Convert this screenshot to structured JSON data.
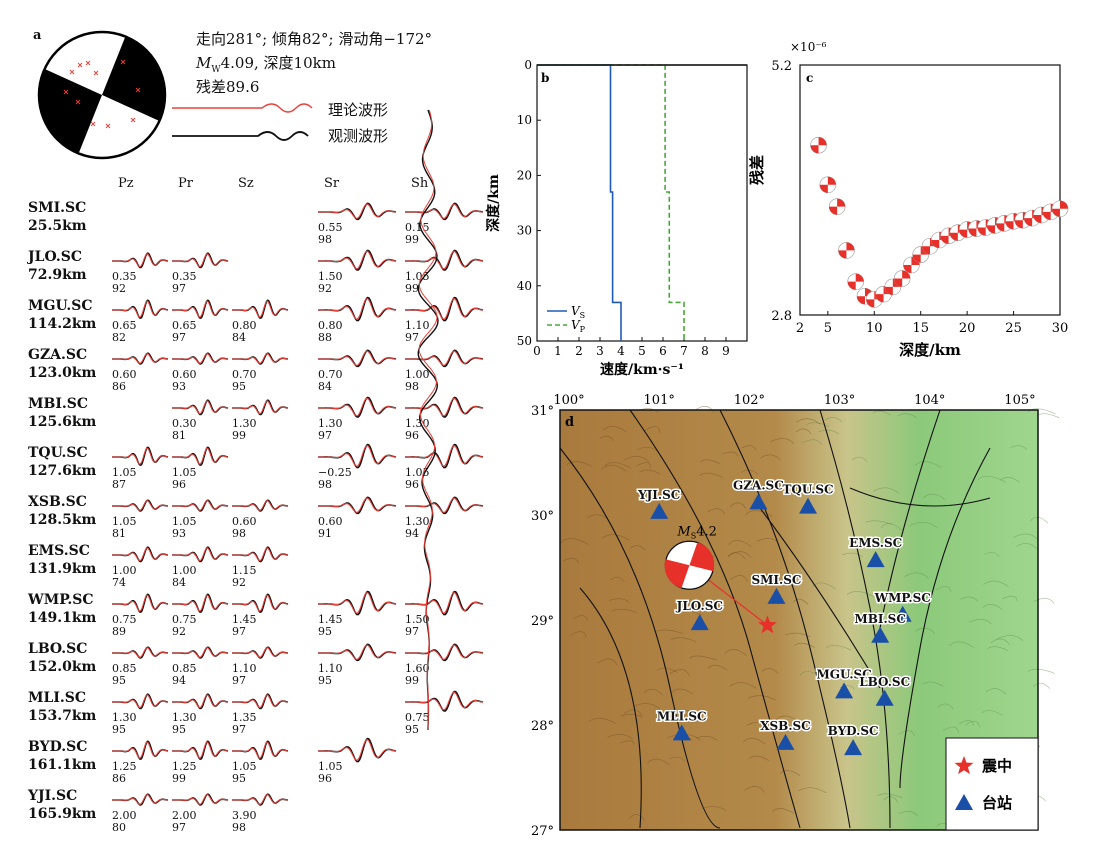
{
  "panel_a": {
    "label": "a",
    "mech_text_line1": "走向281°; 倾角82°; 滑动角−172°",
    "mech_text_mw": "M",
    "mech_text_mw_sub": "W",
    "mech_text_line2_rest": "4.09, 深度10km",
    "mech_text_line3": "残差89.6",
    "legend_theory": "理论波形",
    "legend_observed": "观测波形",
    "components": [
      "Pz",
      "Pr",
      "Sz",
      "Sr",
      "Sh"
    ],
    "stations": [
      {
        "name": "SMI.SC",
        "dist": "25.5km",
        "vals": [
          null,
          null,
          null,
          [
            "0.55",
            "98"
          ],
          [
            "0.15",
            "99"
          ]
        ]
      },
      {
        "name": "JLO.SC",
        "dist": "72.9km",
        "vals": [
          [
            "0.35",
            "92"
          ],
          [
            "0.35",
            "97"
          ],
          null,
          [
            "1.50",
            "92"
          ],
          [
            "1.05",
            "99"
          ]
        ]
      },
      {
        "name": "MGU.SC",
        "dist": "114.2km",
        "vals": [
          [
            "0.65",
            "82"
          ],
          [
            "0.65",
            "97"
          ],
          [
            "0.80",
            "84"
          ],
          [
            "0.80",
            "88"
          ],
          [
            "1.10",
            "97"
          ]
        ]
      },
      {
        "name": "GZA.SC",
        "dist": "123.0km",
        "vals": [
          [
            "0.60",
            "86"
          ],
          [
            "0.60",
            "93"
          ],
          [
            "0.70",
            "95"
          ],
          [
            "0.70",
            "84"
          ],
          [
            "1.00",
            "98"
          ]
        ]
      },
      {
        "name": "MBI.SC",
        "dist": "125.6km",
        "vals": [
          null,
          [
            "0.30",
            "81"
          ],
          [
            "1.30",
            "99"
          ],
          [
            "1.30",
            "97"
          ],
          [
            "1.30",
            "96"
          ]
        ]
      },
      {
        "name": "TQU.SC",
        "dist": "127.6km",
        "vals": [
          [
            "1.05",
            "87"
          ],
          [
            "1.05",
            "96"
          ],
          null,
          [
            "−0.25",
            "98"
          ],
          [
            "1.05",
            "96"
          ]
        ]
      },
      {
        "name": "XSB.SC",
        "dist": "128.5km",
        "vals": [
          [
            "1.05",
            "81"
          ],
          [
            "1.05",
            "93"
          ],
          [
            "0.60",
            "98"
          ],
          [
            "0.60",
            "91"
          ],
          [
            "1.30",
            "94"
          ]
        ]
      },
      {
        "name": "EMS.SC",
        "dist": "131.9km",
        "vals": [
          [
            "1.00",
            "74"
          ],
          [
            "1.00",
            "84"
          ],
          [
            "1.15",
            "92"
          ],
          null,
          null
        ]
      },
      {
        "name": "WMP.SC",
        "dist": "149.1km",
        "vals": [
          [
            "0.75",
            "89"
          ],
          [
            "0.75",
            "92"
          ],
          [
            "1.45",
            "97"
          ],
          [
            "1.45",
            "95"
          ],
          [
            "1.50",
            "97"
          ]
        ]
      },
      {
        "name": "LBO.SC",
        "dist": "152.0km",
        "vals": [
          [
            "0.85",
            "95"
          ],
          [
            "0.85",
            "94"
          ],
          [
            "1.10",
            "97"
          ],
          [
            "1.10",
            "95"
          ],
          [
            "1.60",
            "99"
          ]
        ]
      },
      {
        "name": "MLI.SC",
        "dist": "153.7km",
        "vals": [
          [
            "1.30",
            "95"
          ],
          [
            "1.30",
            "95"
          ],
          [
            "1.35",
            "97"
          ],
          null,
          [
            "0.75",
            "95"
          ]
        ]
      },
      {
        "name": "BYD.SC",
        "dist": "161.1km",
        "vals": [
          [
            "1.25",
            "86"
          ],
          [
            "1.25",
            "99"
          ],
          [
            "1.05",
            "95"
          ],
          [
            "1.05",
            "96"
          ],
          null
        ]
      },
      {
        "name": "YJI.SC",
        "dist": "165.9km",
        "vals": [
          [
            "2.00",
            "80"
          ],
          [
            "2.00",
            "97"
          ],
          [
            "3.90",
            "98"
          ],
          null,
          null
        ]
      }
    ],
    "colors": {
      "theory": "#e8413a",
      "observed": "#111111"
    }
  },
  "chart_data": [
    {
      "type": "line",
      "panel": "b",
      "xlabel": "速度/km·s⁻¹",
      "ylabel": "深度/km",
      "xlim": [
        0,
        10
      ],
      "ylim": [
        50,
        0
      ],
      "xticks": [
        "0",
        "1",
        "2",
        "3",
        "4",
        "5",
        "6",
        "7",
        "8",
        "9"
      ],
      "yticks": [
        "0",
        "10",
        "20",
        "30",
        "40",
        "50"
      ],
      "series": [
        {
          "name": "V_S",
          "legend_main": "V",
          "legend_sub": "S",
          "color": "#1f5bb5",
          "dash": "solid",
          "points": [
            [
              0,
              0
            ],
            [
              2,
              0
            ],
            [
              3.5,
              0
            ],
            [
              3.5,
              23
            ],
            [
              3.6,
              23
            ],
            [
              3.6,
              43
            ],
            [
              4.0,
              43
            ],
            [
              4.0,
              50
            ]
          ]
        },
        {
          "name": "V_P",
          "legend_main": "V",
          "legend_sub": "P",
          "color": "#4aa63a",
          "dash": "dashed",
          "points": [
            [
              0,
              0
            ],
            [
              6.1,
              0
            ],
            [
              6.1,
              23
            ],
            [
              6.3,
              23
            ],
            [
              6.3,
              43
            ],
            [
              7.0,
              43
            ],
            [
              7.0,
              50
            ]
          ]
        }
      ]
    },
    {
      "type": "scatter",
      "panel": "c",
      "xlabel": "深度/km",
      "ylabel": "残差",
      "scale_label": "×10⁻⁶",
      "xlim": [
        2,
        30
      ],
      "ylim": [
        2.8,
        5.2
      ],
      "xticks": [
        "2",
        "5",
        "10",
        "15",
        "20",
        "25",
        "30"
      ],
      "yticks": [
        "2.8",
        "5.2"
      ],
      "depth": [
        4,
        5,
        6,
        7,
        8,
        9,
        10,
        11,
        12,
        13,
        14,
        15,
        16,
        17,
        18,
        19,
        20,
        21,
        22,
        23,
        24,
        25,
        26,
        27,
        28,
        29,
        30
      ],
      "residual": [
        4.43,
        4.05,
        3.84,
        3.42,
        3.12,
        2.98,
        2.95,
        3.0,
        3.07,
        3.15,
        3.28,
        3.38,
        3.46,
        3.52,
        3.56,
        3.59,
        3.62,
        3.63,
        3.64,
        3.66,
        3.68,
        3.7,
        3.71,
        3.73,
        3.76,
        3.79,
        3.82
      ]
    }
  ],
  "panel_d": {
    "label": "d",
    "lon_ticks": [
      "100°",
      "101°",
      "102°",
      "103°",
      "104°",
      "105°"
    ],
    "lat_ticks": [
      "31°",
      "30°",
      "29°",
      "28°",
      "27°"
    ],
    "event_label_main": "M",
    "event_label_sub": "S",
    "event_label_value": "4.2",
    "legend_epicenter": "震中",
    "legend_station": "台站",
    "stations": [
      {
        "name": "YJI.SC",
        "lon": 101.0,
        "lat": 30.03
      },
      {
        "name": "GZA.SC",
        "lon": 102.1,
        "lat": 30.12
      },
      {
        "name": "TQU.SC",
        "lon": 102.65,
        "lat": 30.08
      },
      {
        "name": "EMS.SC",
        "lon": 103.4,
        "lat": 29.57
      },
      {
        "name": "SMI.SC",
        "lon": 102.3,
        "lat": 29.22
      },
      {
        "name": "WMP.SC",
        "lon": 103.7,
        "lat": 29.05
      },
      {
        "name": "JLO.SC",
        "lon": 101.45,
        "lat": 28.97
      },
      {
        "name": "MBI.SC",
        "lon": 103.45,
        "lat": 28.85
      },
      {
        "name": "MGU.SC",
        "lon": 103.05,
        "lat": 28.32
      },
      {
        "name": "LBO.SC",
        "lon": 103.5,
        "lat": 28.25
      },
      {
        "name": "MLI.SC",
        "lon": 101.25,
        "lat": 27.92
      },
      {
        "name": "XSB.SC",
        "lon": 102.4,
        "lat": 27.83
      },
      {
        "name": "BYD.SC",
        "lon": 103.15,
        "lat": 27.78
      }
    ],
    "epicenter": {
      "lon": 102.2,
      "lat": 28.95
    },
    "colors": {
      "station": "#1a4fa8",
      "epicenter": "#e8302a"
    }
  }
}
